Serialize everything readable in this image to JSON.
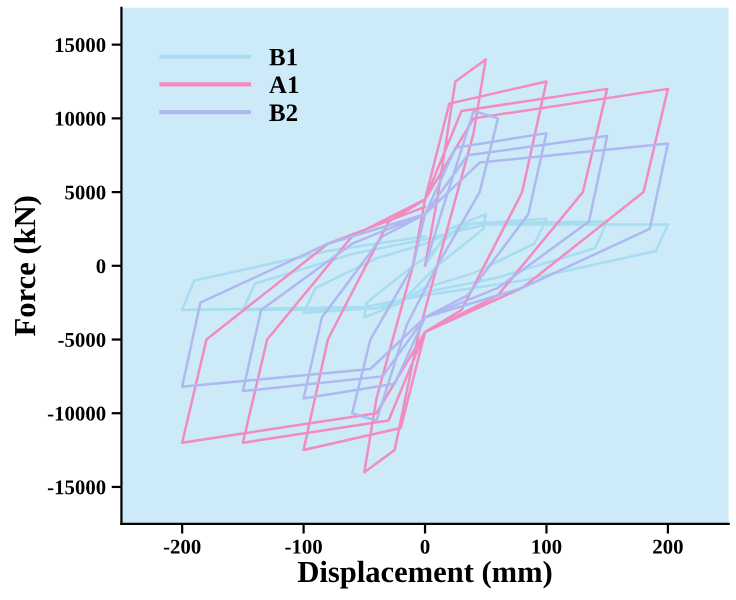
{
  "chart_data": {
    "type": "line",
    "xlabel": "Displacement (mm)",
    "ylabel": "Force (kN)",
    "xlim": [
      -250,
      250
    ],
    "ylim": [
      -17500,
      17500
    ],
    "xticks": [
      -200,
      -100,
      0,
      100,
      200
    ],
    "yticks": [
      -15000,
      -10000,
      -5000,
      0,
      5000,
      10000,
      15000
    ],
    "legend": "top left",
    "grid": false,
    "marker": "none",
    "line_style": "solid",
    "series": [
      {
        "name": "B1",
        "color": "#a8dcf0",
        "x": [
          0,
          20,
          50,
          48,
          10,
          -20,
          -50,
          -48,
          -10,
          0,
          30,
          100,
          90,
          40,
          0,
          -30,
          -100,
          -90,
          -40,
          0,
          40,
          150,
          140,
          60,
          0,
          -40,
          -150,
          -140,
          -60,
          0,
          50,
          200,
          190,
          80,
          0,
          -50,
          -200,
          -190,
          -80,
          0
        ],
        "values": [
          0,
          2500,
          3500,
          2500,
          0,
          -2500,
          -3500,
          -2500,
          0,
          500,
          2800,
          3200,
          1500,
          -500,
          -1500,
          -2800,
          -3200,
          -1500,
          500,
          1500,
          2900,
          3000,
          1200,
          -800,
          -1800,
          -2900,
          -3000,
          -1200,
          800,
          1800,
          2800,
          2800,
          1000,
          -1000,
          -2000,
          -2800,
          -3000,
          -1000,
          1000,
          2000
        ]
      },
      {
        "name": "A1",
        "color": "#f08cc0",
        "x": [
          0,
          10,
          25,
          50,
          40,
          10,
          -5,
          -25,
          -50,
          -40,
          -10,
          0,
          20,
          100,
          80,
          30,
          0,
          -20,
          -100,
          -80,
          -30,
          0,
          30,
          150,
          130,
          60,
          0,
          -30,
          -150,
          -130,
          -60,
          0,
          40,
          200,
          180,
          80,
          0,
          -40,
          -200,
          -180,
          -80,
          0
        ],
        "values": [
          0,
          4500,
          12500,
          14000,
          9000,
          0,
          -4500,
          -12500,
          -14000,
          -9000,
          0,
          4500,
          11000,
          12500,
          5000,
          -3000,
          -4500,
          -11000,
          -12500,
          -5000,
          3000,
          4500,
          10500,
          12000,
          5000,
          -2000,
          -4500,
          -10500,
          -12000,
          -5000,
          2000,
          4500,
          10000,
          12000,
          5000,
          -1500,
          -4500,
          -10000,
          -12000,
          -5000,
          1500,
          4000
        ]
      },
      {
        "name": "B2",
        "color": "#b0b8f0",
        "x": [
          0,
          15,
          40,
          60,
          45,
          10,
          -15,
          -40,
          -60,
          -45,
          -10,
          0,
          25,
          100,
          85,
          35,
          0,
          -25,
          -100,
          -85,
          -35,
          0,
          35,
          150,
          135,
          60,
          0,
          -35,
          -150,
          -135,
          -60,
          0,
          45,
          200,
          185,
          80,
          0,
          -45,
          -200,
          -185,
          -80,
          0
        ],
        "values": [
          0,
          4000,
          10500,
          10000,
          5000,
          0,
          -4000,
          -10500,
          -10000,
          -5000,
          0,
          3500,
          8000,
          9000,
          3500,
          -2000,
          -3500,
          -8000,
          -9000,
          -3500,
          2000,
          3500,
          7500,
          8800,
          3000,
          -1500,
          -3500,
          -7500,
          -8500,
          -3000,
          1500,
          3500,
          7000,
          8300,
          2500,
          -1500,
          -3500,
          -7000,
          -8200,
          -2500,
          1500,
          3500
        ]
      }
    ]
  }
}
